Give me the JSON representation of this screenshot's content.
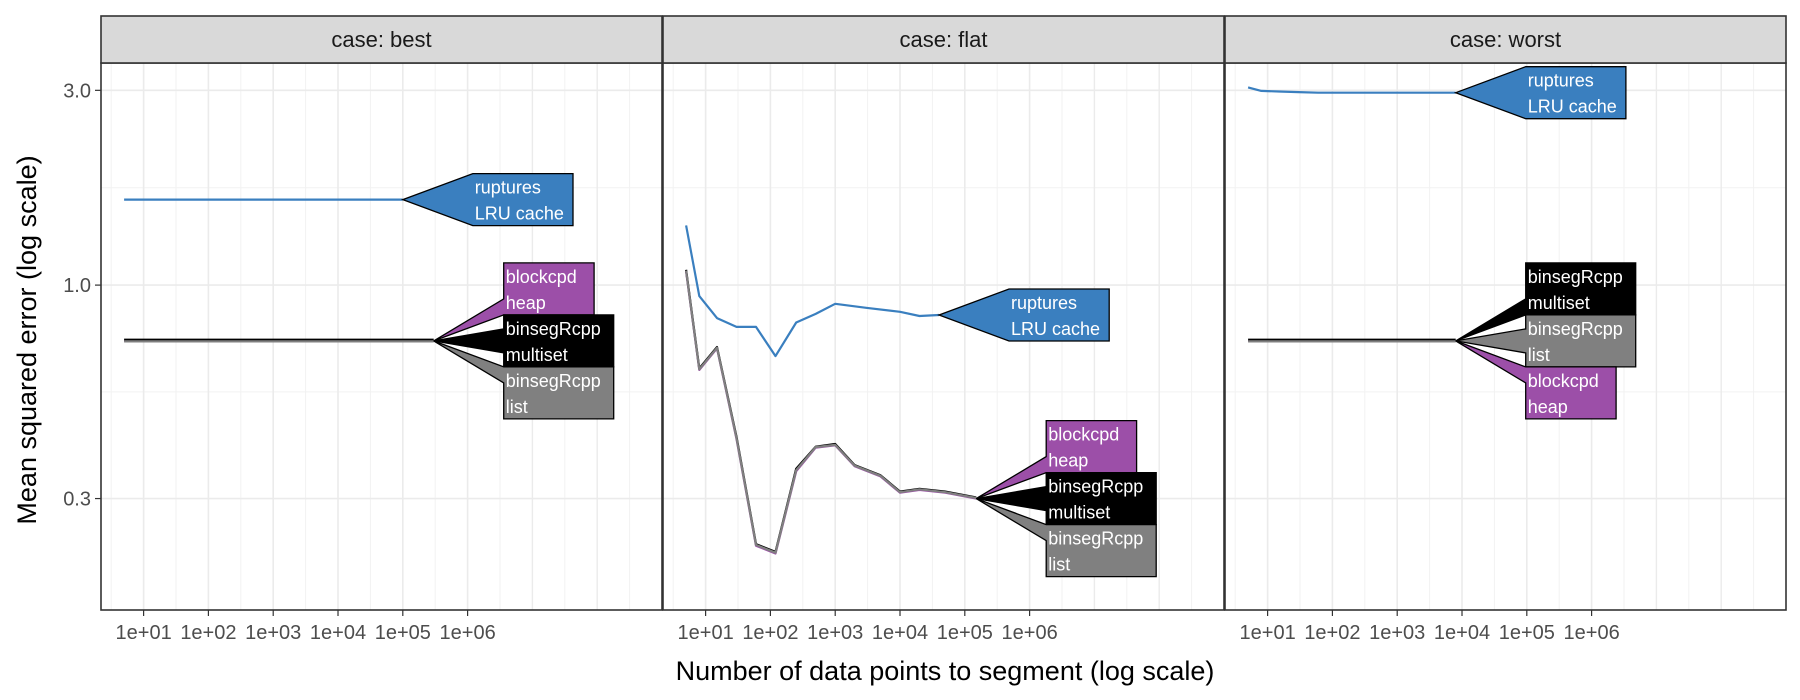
{
  "chart_data": {
    "type": "line",
    "x_scale": "log10",
    "y_scale": "log10",
    "xlabel": "Number of data points to segment (log scale)",
    "ylabel": "Mean squared error (log scale)",
    "x_ticks": [
      {
        "value": 10,
        "label": "1e+01"
      },
      {
        "value": 100,
        "label": "1e+02"
      },
      {
        "value": 1000,
        "label": "1e+03"
      },
      {
        "value": 10000,
        "label": "1e+04"
      },
      {
        "value": 100000,
        "label": "1e+05"
      },
      {
        "value": 1000000,
        "label": "1e+06"
      }
    ],
    "y_ticks": [
      {
        "value": 3.0,
        "label": "3.0"
      },
      {
        "value": 1.0,
        "label": "1.0"
      },
      {
        "value": 0.3,
        "label": "0.3"
      }
    ],
    "xlim": [
      2.2,
      1000000000
    ],
    "ylim": [
      0.16,
      3.5
    ],
    "colors": {
      "ruptures": "#3a7fbf",
      "blockcpd": "#9c4fa8",
      "binsegRcpp_multiset": "#000000",
      "binsegRcpp_list": "#808080",
      "strip_bg": "#d9d9d9",
      "grid": "#ebebeb"
    },
    "panels": [
      {
        "strip": "case: best",
        "lines": [
          {
            "id": "ruptures",
            "color": "#3a7fbf",
            "x": [
              5,
              100000
            ],
            "y": [
              1.62,
              1.62
            ]
          },
          {
            "id": "blockcpd",
            "color": "#9c4fa8",
            "x": [
              5,
              300000
            ],
            "y": [
              0.73,
              0.73
            ]
          },
          {
            "id": "binsegRcpp_multiset",
            "color": "#000000",
            "x": [
              5,
              300000
            ],
            "y": [
              0.735,
              0.735
            ]
          },
          {
            "id": "binsegRcpp_list",
            "color": "#808080",
            "x": [
              5,
              300000
            ],
            "y": [
              0.728,
              0.728
            ]
          }
        ],
        "labels": [
          {
            "line": "ruptures",
            "lines": [
              "ruptures",
              "LRU cache"
            ],
            "anchor_x": 100000,
            "anchor_y": 1.62,
            "bg": "#3a7fbf",
            "text_color": "#ffffff"
          },
          {
            "line": "blockcpd",
            "lines": [
              "blockcpd",
              "heap"
            ],
            "anchor_x": 300000,
            "anchor_y": 0.73,
            "bg": "#9c4fa8",
            "text_color": "#ffffff"
          },
          {
            "line": "binsegRcpp_multiset",
            "lines": [
              "binsegRcpp",
              "multiset"
            ],
            "anchor_x": 300000,
            "anchor_y": 0.73,
            "bg": "#000000",
            "text_color": "#ffffff"
          },
          {
            "line": "binsegRcpp_list",
            "lines": [
              "binsegRcpp",
              "list"
            ],
            "anchor_x": 300000,
            "anchor_y": 0.73,
            "bg": "#808080",
            "text_color": "#ffffff"
          }
        ]
      },
      {
        "strip": "case: flat",
        "lines": [
          {
            "id": "ruptures",
            "color": "#3a7fbf",
            "x": [
              5,
              8,
              15,
              30,
              60,
              120,
              250,
              500,
              1000,
              3000,
              10000,
              20000,
              40000
            ],
            "y": [
              1.4,
              0.94,
              0.83,
              0.79,
              0.79,
              0.67,
              0.81,
              0.85,
              0.9,
              0.88,
              0.86,
              0.84,
              0.845
            ]
          },
          {
            "id": "blockcpd",
            "color": "#9c4fa8",
            "x": [
              5,
              8,
              15,
              30,
              60,
              120,
              250,
              500,
              1000,
              2000,
              5000,
              10000,
              20000,
              50000,
              150000
            ],
            "y": [
              1.08,
              0.62,
              0.7,
              0.42,
              0.23,
              0.22,
              0.35,
              0.4,
              0.405,
              0.36,
              0.34,
              0.31,
              0.315,
              0.31,
              0.3
            ]
          },
          {
            "id": "binsegRcpp_multiset",
            "color": "#000000",
            "x": [
              5,
              8,
              15,
              30,
              60,
              120,
              250,
              500,
              1000,
              2000,
              5000,
              10000,
              20000,
              50000,
              150000
            ],
            "y": [
              1.09,
              0.625,
              0.705,
              0.425,
              0.232,
              0.222,
              0.355,
              0.402,
              0.408,
              0.362,
              0.342,
              0.312,
              0.317,
              0.312,
              0.302
            ]
          },
          {
            "id": "binsegRcpp_list",
            "color": "#808080",
            "x": [
              5,
              8,
              15,
              30,
              60,
              120,
              250,
              500,
              1000,
              2000,
              5000,
              10000,
              20000,
              50000,
              150000
            ],
            "y": [
              1.085,
              0.622,
              0.702,
              0.422,
              0.231,
              0.221,
              0.352,
              0.401,
              0.406,
              0.361,
              0.341,
              0.311,
              0.316,
              0.311,
              0.301
            ]
          }
        ],
        "labels": [
          {
            "line": "ruptures",
            "lines": [
              "ruptures",
              "LRU cache"
            ],
            "anchor_x": 40000,
            "anchor_y": 0.845,
            "bg": "#3a7fbf",
            "text_color": "#ffffff"
          },
          {
            "line": "blockcpd",
            "lines": [
              "blockcpd",
              "heap"
            ],
            "anchor_x": 150000,
            "anchor_y": 0.3,
            "bg": "#9c4fa8",
            "text_color": "#ffffff"
          },
          {
            "line": "binsegRcpp_multiset",
            "lines": [
              "binsegRcpp",
              "multiset"
            ],
            "anchor_x": 150000,
            "anchor_y": 0.3,
            "bg": "#000000",
            "text_color": "#ffffff"
          },
          {
            "line": "binsegRcpp_list",
            "lines": [
              "binsegRcpp",
              "list"
            ],
            "anchor_x": 150000,
            "anchor_y": 0.3,
            "bg": "#808080",
            "text_color": "#ffffff"
          }
        ]
      },
      {
        "strip": "case: worst",
        "lines": [
          {
            "id": "ruptures",
            "color": "#3a7fbf",
            "x": [
              5,
              8,
              15,
              30,
              60,
              100,
              300,
              1000,
              3000,
              8000
            ],
            "y": [
              3.05,
              2.99,
              2.98,
              2.97,
              2.96,
              2.96,
              2.96,
              2.96,
              2.96,
              2.96
            ]
          },
          {
            "id": "blockcpd",
            "color": "#9c4fa8",
            "x": [
              5,
              8000
            ],
            "y": [
              0.73,
              0.73
            ]
          },
          {
            "id": "binsegRcpp_multiset",
            "color": "#000000",
            "x": [
              5,
              8000
            ],
            "y": [
              0.735,
              0.735
            ]
          },
          {
            "id": "binsegRcpp_list",
            "color": "#808080",
            "x": [
              5,
              8000
            ],
            "y": [
              0.728,
              0.728
            ]
          }
        ],
        "labels": [
          {
            "line": "ruptures",
            "lines": [
              "ruptures",
              "LRU cache"
            ],
            "anchor_x": 8000,
            "anchor_y": 2.96,
            "bg": "#3a7fbf",
            "text_color": "#ffffff"
          },
          {
            "line": "binsegRcpp_multiset",
            "lines": [
              "binsegRcpp",
              "multiset"
            ],
            "anchor_x": 8000,
            "anchor_y": 0.73,
            "bg": "#000000",
            "text_color": "#ffffff"
          },
          {
            "line": "binsegRcpp_list",
            "lines": [
              "binsegRcpp",
              "list"
            ],
            "anchor_x": 8000,
            "anchor_y": 0.73,
            "bg": "#808080",
            "text_color": "#ffffff"
          },
          {
            "line": "blockcpd",
            "lines": [
              "blockcpd",
              "heap"
            ],
            "anchor_x": 8000,
            "anchor_y": 0.73,
            "bg": "#9c4fa8",
            "text_color": "#ffffff"
          }
        ]
      }
    ]
  }
}
